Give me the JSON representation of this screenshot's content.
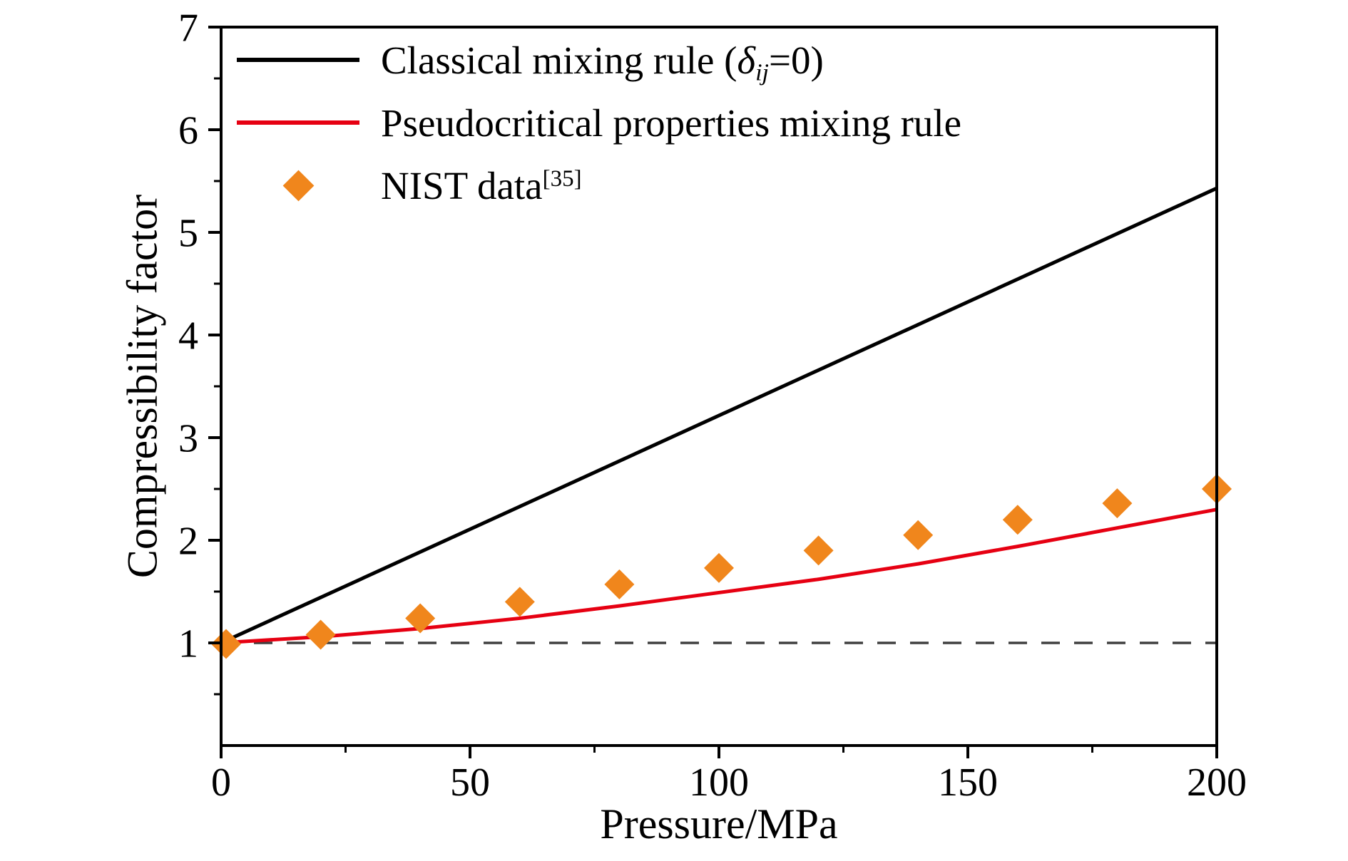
{
  "chart_data": {
    "type": "line",
    "title": "",
    "xlabel": "Pressure/MPa",
    "ylabel": "Compressibility factor",
    "xlim": [
      0,
      200
    ],
    "ylim": [
      0,
      7
    ],
    "x_ticks": [
      0,
      50,
      100,
      150,
      200
    ],
    "x_minor_ticks": [
      25,
      75,
      125,
      175
    ],
    "y_ticks": [
      1,
      2,
      3,
      4,
      5,
      6,
      7
    ],
    "y_minor_ticks": [
      0.5,
      1.5,
      2.5,
      3.5,
      4.5,
      5.5,
      6.5
    ],
    "grid": false,
    "legend_position": "top-left",
    "series": [
      {
        "name": "Classical mixing rule (δij=0)",
        "type": "line",
        "color": "#000000",
        "x": [
          0,
          200
        ],
        "y": [
          1.0,
          5.43
        ]
      },
      {
        "name": "Pseudocritical properties mixing rule",
        "type": "line",
        "color": "#e60012",
        "x": [
          0,
          20,
          40,
          60,
          80,
          100,
          120,
          140,
          160,
          180,
          200
        ],
        "y": [
          1.0,
          1.06,
          1.14,
          1.24,
          1.36,
          1.49,
          1.62,
          1.77,
          1.94,
          2.12,
          2.3
        ]
      },
      {
        "name": "NIST data [35]",
        "type": "scatter",
        "marker": "diamond",
        "color": "#f0861c",
        "x": [
          1,
          20,
          40,
          60,
          80,
          100,
          120,
          140,
          160,
          180,
          200
        ],
        "y": [
          0.99,
          1.08,
          1.24,
          1.4,
          1.57,
          1.73,
          1.9,
          2.05,
          2.2,
          2.36,
          2.5
        ]
      }
    ],
    "reference_line": {
      "y": 1,
      "style": "dashed",
      "color": "#404040"
    }
  },
  "legend": {
    "items": [
      {
        "prefix": "Classical mixing rule (",
        "delta": "δ",
        "sub": "ij",
        "suffix": "=0)",
        "swatch": "line",
        "color": "#000000"
      },
      {
        "label": "Pseudocritical properties mixing rule",
        "swatch": "line",
        "color": "#e60012"
      },
      {
        "label": "NIST data",
        "sup": "[35]",
        "swatch": "diamond",
        "color": "#f0861c"
      }
    ]
  }
}
